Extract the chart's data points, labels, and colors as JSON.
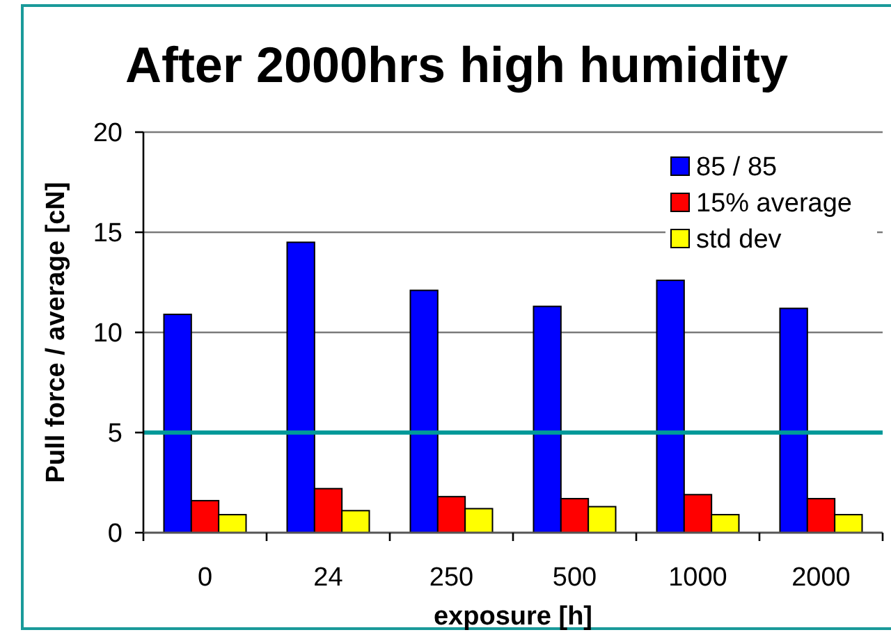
{
  "chart_data": {
    "type": "bar",
    "title": "After 2000hrs high humidity",
    "xlabel": "exposure [h]",
    "ylabel": "Pull force / average [cN]",
    "categories": [
      "0",
      "24",
      "250",
      "500",
      "1000",
      "2000"
    ],
    "series": [
      {
        "name": "85 / 85",
        "color": "#0000ff",
        "values": [
          10.9,
          14.5,
          12.1,
          11.3,
          12.6,
          11.2
        ]
      },
      {
        "name": "15% average",
        "color": "#ff0000",
        "values": [
          1.6,
          2.2,
          1.8,
          1.7,
          1.9,
          1.7
        ]
      },
      {
        "name": "std dev",
        "color": "#ffff00",
        "values": [
          0.9,
          1.1,
          1.2,
          1.3,
          0.9,
          0.9
        ]
      }
    ],
    "ylim": [
      0,
      20
    ],
    "yticks": [
      0,
      5,
      10,
      15,
      20
    ],
    "grid": "y",
    "legend": "top right",
    "ref_lines": [
      {
        "axis": "y",
        "value": 5,
        "color": "#009999"
      }
    ]
  }
}
